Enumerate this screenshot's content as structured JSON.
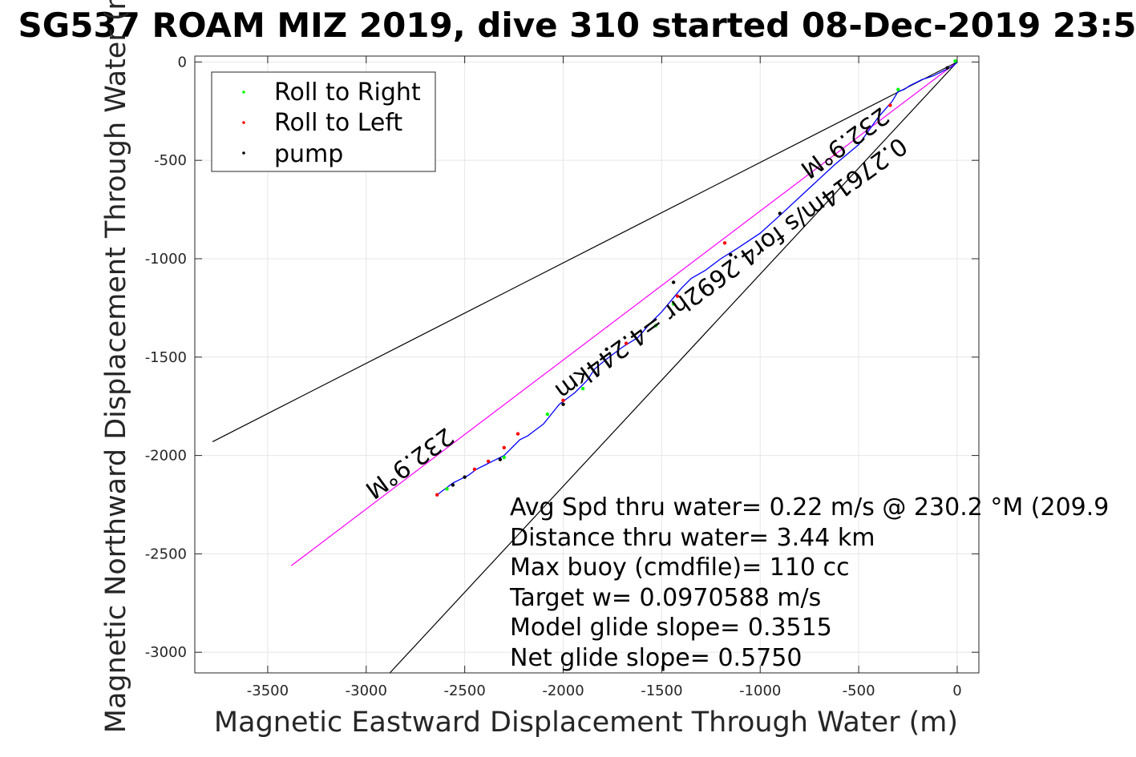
{
  "chart_data": {
    "type": "line",
    "title": "SG537 ROAM MIZ 2019, dive 310 started 08-Dec-2019 23:5",
    "xlabel": "Magnetic Eastward Displacement Through Water (m)",
    "ylabel": "Magnetic Northward Displacement Through Water (m)",
    "xlim": [
      -3870,
      110
    ],
    "ylim": [
      -3105,
      30
    ],
    "xticks": [
      -3500,
      -3000,
      -2500,
      -2000,
      -1500,
      -1000,
      -500,
      0
    ],
    "xtick_labels": [
      "-3500",
      "-3000",
      "-2500",
      "-2000",
      "-1500",
      "-1000",
      "-500",
      "0"
    ],
    "yticks": [
      0,
      -500,
      -1000,
      -1500,
      -2000,
      -2500,
      -3000
    ],
    "ytick_labels": [
      "0",
      "-500",
      "-1000",
      "-1500",
      "-2000",
      "-2500",
      "-3000"
    ],
    "grid": true,
    "legend_position": "top-left",
    "legend": [
      {
        "label": "Roll to Right",
        "color": "#00ff00"
      },
      {
        "label": "Roll to Left",
        "color": "#ff0000"
      },
      {
        "label": "pump",
        "color": "#000000"
      }
    ],
    "track": {
      "color": "#0000ff",
      "x": [
        0,
        -20,
        -60,
        -120,
        -180,
        -240,
        -270,
        -300,
        -330,
        -400,
        -500,
        -620,
        -760,
        -900,
        -1000,
        -1120,
        -1200,
        -1280,
        -1350,
        -1400,
        -1450,
        -1500,
        -1560,
        -1620,
        -1700,
        -1780,
        -1840,
        -1880,
        -1940,
        -1980,
        -2020,
        -2060,
        -2100,
        -2140,
        -2180,
        -2220,
        -2260,
        -2300,
        -2320,
        -2360,
        -2400,
        -2440,
        -2480,
        -2520,
        -2560,
        -2600,
        -2640
      ],
      "y": [
        0,
        -20,
        -40,
        -70,
        -90,
        -120,
        -140,
        -150,
        -200,
        -280,
        -420,
        -520,
        -650,
        -780,
        -870,
        -950,
        -1000,
        -1060,
        -1100,
        -1150,
        -1210,
        -1270,
        -1330,
        -1400,
        -1450,
        -1510,
        -1560,
        -1620,
        -1680,
        -1710,
        -1740,
        -1790,
        -1840,
        -1870,
        -1900,
        -1920,
        -1960,
        -2000,
        -2010,
        -2030,
        -2050,
        -2070,
        -2100,
        -2120,
        -2140,
        -2170,
        -2200
      ]
    },
    "reference_lines": [
      {
        "color": "#ff00ff",
        "x": [
          0,
          -3380
        ],
        "y": [
          0,
          -2560
        ]
      },
      {
        "color": "#000000",
        "x": [
          0,
          -3780
        ],
        "y": [
          0,
          -1930
        ]
      },
      {
        "color": "#000000",
        "x": [
          0,
          -2880
        ],
        "y": [
          0,
          -3105
        ]
      }
    ],
    "roll_right_points": {
      "x": [
        -10,
        -300,
        -1440,
        -1530,
        -1900,
        -2080,
        -2300,
        -2590
      ],
      "y": [
        5,
        -140,
        -1230,
        -1340,
        -1660,
        -1790,
        -2010,
        -2170
      ]
    },
    "roll_left_points": {
      "x": [
        -340,
        -620,
        -1180,
        -1420,
        -1680,
        -2000,
        -2230,
        -2300,
        -2380,
        -2450,
        -2640
      ],
      "y": [
        -220,
        -470,
        -920,
        -1190,
        -1430,
        -1720,
        -1890,
        -1960,
        -2030,
        -2070,
        -2200
      ]
    },
    "pump_points": {
      "x": [
        -50,
        -900,
        -1150,
        -1440,
        -1780,
        -2000,
        -2320,
        -2500,
        -2560
      ],
      "y": [
        -30,
        -770,
        -980,
        -1120,
        -1460,
        -1740,
        -2020,
        -2110,
        -2150
      ]
    },
    "rotated_labels": [
      {
        "text": "232.9°M"
      },
      {
        "text": "232.9°M"
      },
      {
        "text": "0.27614m/s for4.2692hr =4.244km"
      }
    ],
    "annotations": [
      "Avg Spd thru water=  0.22 m/s @ 230.2 °M (209.9",
      "Distance thru water=  3.44 km",
      "Max buoy (cmdfile)= 110 cc",
      "Target w= 0.0970588 m/s",
      "Model glide slope= 0.3515",
      "Net glide slope= 0.5750"
    ]
  }
}
